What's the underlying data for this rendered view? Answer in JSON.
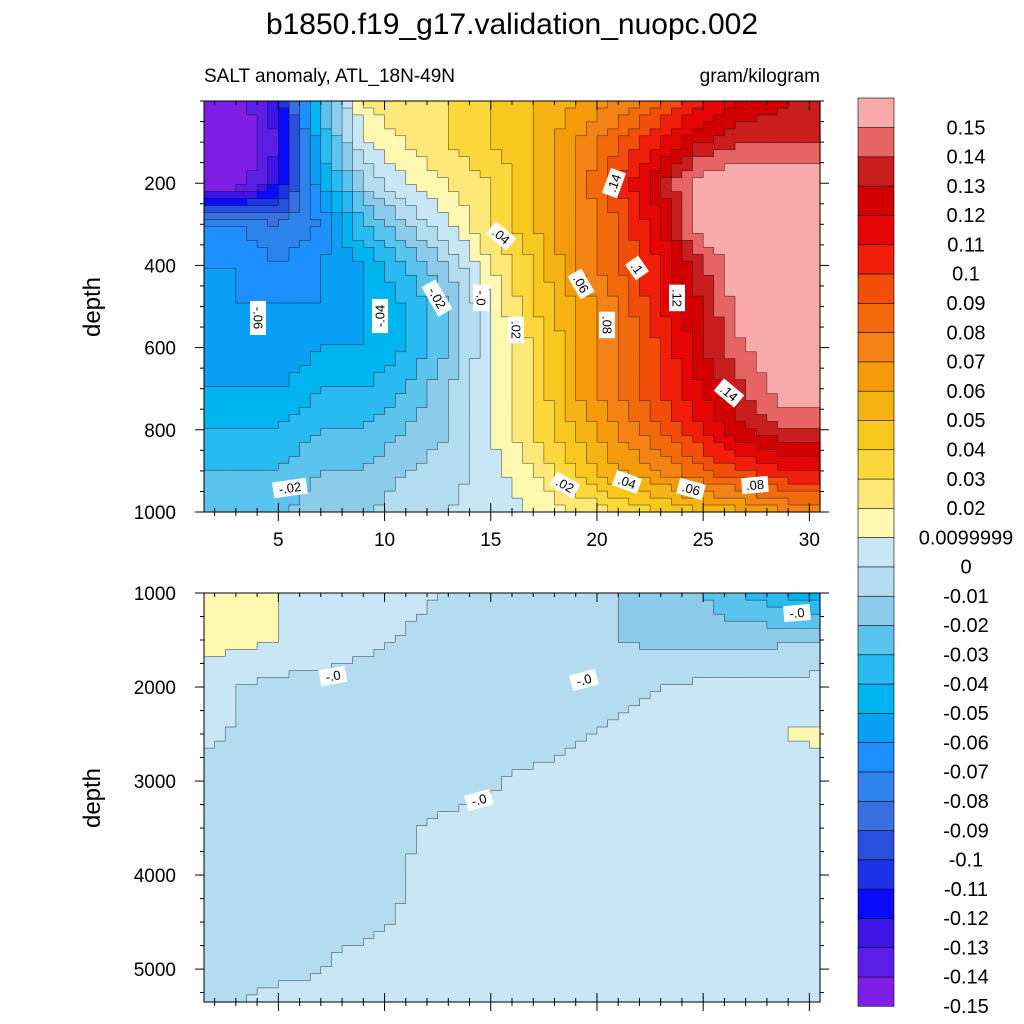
{
  "figure": {
    "title": "b1850.f19_g17.validation_nuopc.002",
    "subtitle_left": "SALT anomaly, ATL_18N-49N",
    "subtitle_right": "gram/kilogram"
  },
  "chart_data": [
    {
      "type": "heatmap",
      "panel": "upper",
      "ylabel": "depth",
      "xlim": [
        1.5,
        30.5
      ],
      "ylim": [
        1000,
        0
      ],
      "x_ticks": [
        5,
        10,
        15,
        20,
        25,
        30
      ],
      "y_ticks": [
        200,
        400,
        600,
        800,
        1000
      ],
      "contour_labels": [
        "-.06",
        "-.04",
        "-.02",
        "-.0",
        ".02",
        ".04",
        ".06",
        ".08",
        ".1",
        ".12",
        ".14",
        ".14",
        "-.02",
        ".02",
        ".04",
        ".06",
        ".08"
      ],
      "x": [
        1.5,
        3,
        5,
        7,
        9,
        11,
        13,
        15,
        17,
        19,
        21,
        23,
        25,
        27,
        29,
        30.5
      ],
      "y": [
        0,
        100,
        200,
        300,
        400,
        500,
        600,
        700,
        800,
        900,
        1000
      ],
      "z": [
        [
          -0.15,
          -0.15,
          -0.12,
          -0.03,
          0.02,
          0.03,
          0.03,
          0.04,
          0.05,
          0.06,
          0.07,
          0.09,
          0.11,
          0.12,
          0.13,
          0.13
        ],
        [
          -0.15,
          -0.15,
          -0.13,
          -0.04,
          0.01,
          0.02,
          0.03,
          0.04,
          0.05,
          0.07,
          0.09,
          0.11,
          0.13,
          0.14,
          0.14,
          0.14
        ],
        [
          -0.15,
          -0.15,
          -0.12,
          -0.05,
          -0.01,
          0.01,
          0.02,
          0.03,
          0.05,
          0.07,
          0.1,
          0.13,
          0.16,
          0.16,
          0.16,
          0.16
        ],
        [
          -0.07,
          -0.07,
          -0.08,
          -0.07,
          -0.03,
          -0.01,
          0.01,
          0.03,
          0.05,
          0.07,
          0.09,
          0.12,
          0.16,
          0.16,
          0.16,
          0.16
        ],
        [
          -0.06,
          -0.06,
          -0.07,
          -0.06,
          -0.05,
          -0.03,
          -0.01,
          0.02,
          0.04,
          0.07,
          0.09,
          0.11,
          0.14,
          0.16,
          0.16,
          0.16
        ],
        [
          -0.06,
          -0.06,
          -0.06,
          -0.06,
          -0.05,
          -0.04,
          -0.02,
          0.01,
          0.04,
          0.06,
          0.08,
          0.11,
          0.13,
          0.16,
          0.16,
          0.16
        ],
        [
          -0.06,
          -0.06,
          -0.06,
          -0.05,
          -0.05,
          -0.04,
          -0.02,
          0.01,
          0.03,
          0.06,
          0.08,
          0.1,
          0.13,
          0.15,
          0.16,
          0.16
        ],
        [
          -0.05,
          -0.05,
          -0.05,
          -0.04,
          -0.04,
          -0.03,
          -0.01,
          0.01,
          0.03,
          0.06,
          0.08,
          0.1,
          0.12,
          0.14,
          0.16,
          0.16
        ],
        [
          -0.04,
          -0.04,
          -0.04,
          -0.03,
          -0.03,
          -0.02,
          -0.01,
          0.01,
          0.03,
          0.05,
          0.07,
          0.09,
          0.11,
          0.13,
          0.14,
          0.14
        ],
        [
          -0.03,
          -0.03,
          -0.03,
          -0.02,
          -0.02,
          -0.01,
          -0.005,
          0.005,
          0.02,
          0.04,
          0.06,
          0.07,
          0.09,
          0.1,
          0.11,
          0.11
        ],
        [
          -0.02,
          -0.02,
          -0.02,
          -0.015,
          -0.01,
          -0.005,
          0.0,
          0.005,
          0.01,
          0.02,
          0.03,
          0.04,
          0.05,
          0.06,
          0.07,
          0.07
        ]
      ]
    },
    {
      "type": "heatmap",
      "panel": "lower",
      "ylabel": "depth",
      "xlim": [
        1.5,
        30.5
      ],
      "ylim": [
        5350,
        1000
      ],
      "x_ticks": [
        5,
        10,
        15,
        20,
        25,
        30
      ],
      "y_ticks": [
        1000,
        2000,
        3000,
        4000,
        5000
      ],
      "contour_labels": [
        "-.0",
        "-.0",
        "-.0",
        "-.0"
      ],
      "x": [
        1.5,
        5,
        9,
        13,
        17,
        21,
        25,
        30.5
      ],
      "y": [
        1000,
        1500,
        2000,
        2500,
        3000,
        3500,
        4000,
        4500,
        5000,
        5350
      ],
      "z": [
        [
          0.02,
          0.01,
          0.005,
          0.0,
          -0.005,
          -0.01,
          -0.02,
          -0.05
        ],
        [
          0.015,
          0.01,
          0.003,
          -0.005,
          -0.01,
          -0.01,
          -0.015,
          -0.01
        ],
        [
          0.003,
          -0.003,
          -0.005,
          -0.005,
          -0.005,
          -0.003,
          0.003,
          0.004
        ],
        [
          0.002,
          -0.004,
          -0.005,
          -0.004,
          -0.004,
          0.002,
          0.006,
          0.012
        ],
        [
          -0.004,
          -0.005,
          -0.005,
          -0.004,
          0.002,
          0.004,
          0.005,
          0.005
        ],
        [
          -0.004,
          -0.004,
          -0.004,
          0.002,
          0.004,
          0.004,
          0.004,
          0.005
        ],
        [
          -0.004,
          -0.004,
          -0.003,
          0.003,
          0.004,
          0.004,
          0.004,
          0.004
        ],
        [
          -0.004,
          -0.004,
          -0.002,
          0.003,
          0.004,
          0.004,
          0.004,
          0.004
        ],
        [
          -0.004,
          -0.003,
          0.003,
          0.004,
          0.004,
          0.004,
          0.004,
          0.004
        ],
        [
          -0.003,
          0.003,
          0.004,
          0.004,
          0.004,
          0.004,
          0.004,
          0.004
        ]
      ]
    }
  ],
  "colorbar": {
    "levels": [
      -0.15,
      -0.14,
      -0.13,
      -0.12,
      -0.11,
      -0.1,
      -0.09,
      -0.08,
      -0.07,
      -0.06,
      -0.05,
      -0.04,
      -0.03,
      -0.02,
      -0.01,
      0,
      0.01,
      0.02,
      0.03,
      0.04,
      0.05,
      0.06,
      0.07,
      0.08,
      0.09,
      0.1,
      0.11,
      0.12,
      0.13,
      0.14,
      0.15
    ],
    "labels": [
      "0.15",
      "0.14",
      "0.13",
      "0.12",
      "0.11",
      "0.1",
      "0.09",
      "0.08",
      "0.07",
      "0.06",
      "0.05",
      "0.04",
      "0.03",
      "0.02",
      "0.0099999",
      "0",
      "-0.01",
      "-0.02",
      "-0.03",
      "-0.04",
      "-0.05",
      "-0.06",
      "-0.07",
      "-0.08",
      "-0.09",
      "-0.1",
      "-0.11",
      "-0.12",
      "-0.13",
      "-0.14",
      "-0.15"
    ],
    "colors": [
      "#7f1ee6",
      "#5a1ee6",
      "#3c14e6",
      "#0a0aff",
      "#1e32e6",
      "#2850dc",
      "#3a6fe0",
      "#2e82ec",
      "#1e90ff",
      "#0aa0f5",
      "#00b4f0",
      "#28baf0",
      "#5ac3ee",
      "#8ccbea",
      "#b4dcf0",
      "#c8e6f5",
      "#fff8b0",
      "#fde878",
      "#fcd83c",
      "#f8c81e",
      "#f6b414",
      "#f59a0a",
      "#f58214",
      "#f26a0a",
      "#f24e0a",
      "#f01e0a",
      "#e60505",
      "#d20000",
      "#c81e1e",
      "#e66464",
      "#f8aaaa"
    ]
  }
}
